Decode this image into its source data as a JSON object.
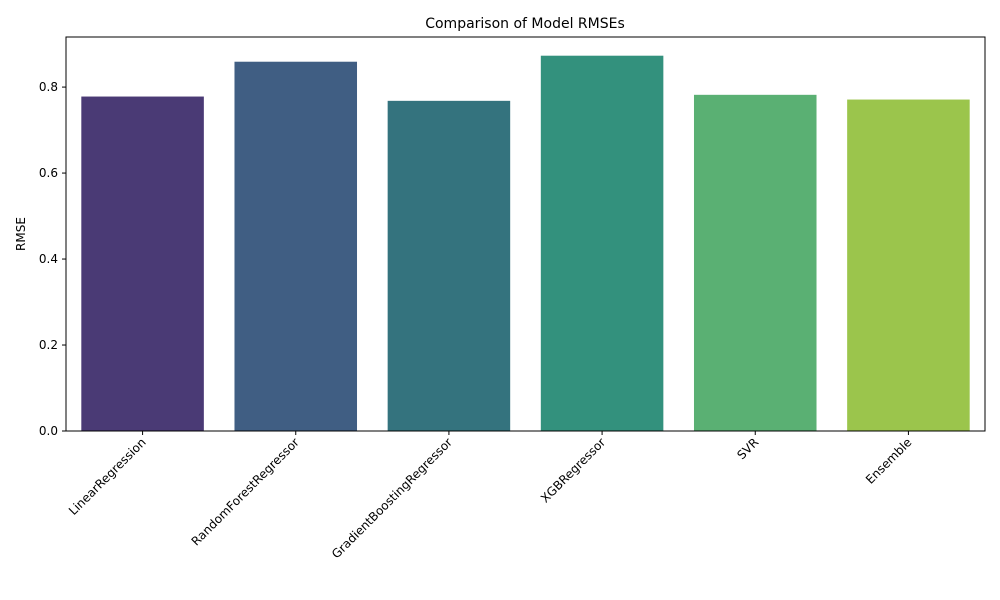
{
  "chart_data": {
    "type": "bar",
    "title": "Comparison of Model RMSEs",
    "xlabel": "",
    "ylabel": "RMSE",
    "ylim": [
      0,
      0.9165
    ],
    "yticks": [
      0.0,
      0.2,
      0.4,
      0.6,
      0.8
    ],
    "grid": false,
    "categories": [
      "LinearRegression",
      "RandomForestRegressor",
      "GradientBoostingRegressor",
      "XGBRegressor",
      "SVR",
      "Ensemble"
    ],
    "values": [
      0.778,
      0.859,
      0.768,
      0.873,
      0.782,
      0.771
    ],
    "colors": [
      "#4a3a75",
      "#405e83",
      "#34737e",
      "#33917d",
      "#5ab073",
      "#9bc54c"
    ]
  }
}
